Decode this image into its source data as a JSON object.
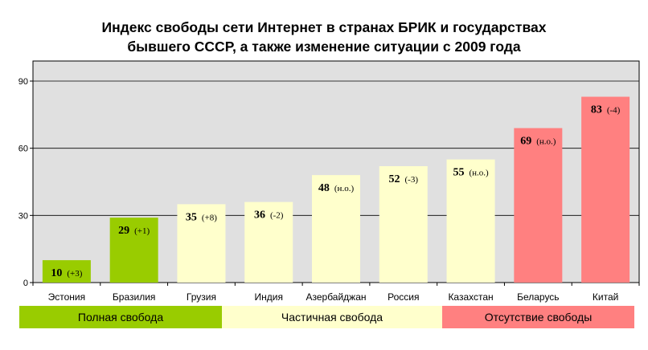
{
  "chart_data": {
    "type": "bar",
    "title_line1": "Индекс свободы сети Интернет в странах БРИК и государствах",
    "title_line2": "бывшего СССР, а также изменение ситуации с 2009 года",
    "categories": [
      "Эстония",
      "Бразилия",
      "Грузия",
      "Индия",
      "Азербайджан",
      "Россия",
      "Казахстан",
      "Беларусь",
      "Китай"
    ],
    "values": [
      10,
      29,
      35,
      36,
      48,
      52,
      55,
      69,
      83
    ],
    "changes": [
      "(+3)",
      "(+1)",
      "(+8)",
      "(-2)",
      "(н.о.)",
      "(-3)",
      "(н.о.)",
      "(н.о.)",
      "(-4)"
    ],
    "groups": [
      "full",
      "full",
      "partial",
      "partial",
      "partial",
      "partial",
      "partial",
      "none",
      "none"
    ],
    "ylim": [
      0,
      90
    ],
    "yticks": [
      0,
      30,
      60,
      90
    ],
    "grid": true,
    "legend_position": "bottom",
    "legend": [
      {
        "key": "full",
        "label": "Полная свобода",
        "color": "#99cc00"
      },
      {
        "key": "partial",
        "label": "Частичная свобода",
        "color": "#ffffcc"
      },
      {
        "key": "none",
        "label": "Отсутствие свободы",
        "color": "#ff8080"
      }
    ],
    "plot_background": "#e0e0e0"
  }
}
